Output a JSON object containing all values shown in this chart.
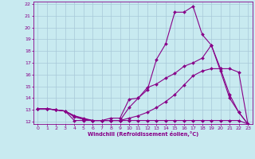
{
  "xlabel": "Windchill (Refroidissement éolien,°C)",
  "bg_color": "#c8eaf0",
  "grid_color": "#a8c8d8",
  "line_color": "#880088",
  "xlim": [
    -0.5,
    23.5
  ],
  "ylim": [
    11.8,
    22.2
  ],
  "xticks": [
    0,
    1,
    2,
    3,
    4,
    5,
    6,
    7,
    8,
    9,
    10,
    11,
    12,
    13,
    14,
    15,
    16,
    17,
    18,
    19,
    20,
    21,
    22,
    23
  ],
  "yticks": [
    12,
    13,
    14,
    15,
    16,
    17,
    18,
    19,
    20,
    21,
    22
  ],
  "lines": [
    {
      "x": [
        0,
        1,
        2,
        3,
        4,
        5,
        6,
        7,
        8,
        9,
        10,
        11,
        12,
        13,
        14,
        15,
        16,
        17,
        18,
        19,
        20,
        21,
        22,
        23
      ],
      "y": [
        13.1,
        13.1,
        13.0,
        12.9,
        12.1,
        12.1,
        12.1,
        12.1,
        12.3,
        12.3,
        13.9,
        14.0,
        14.7,
        17.3,
        18.6,
        21.3,
        21.3,
        21.8,
        19.4,
        18.5,
        16.3,
        14.0,
        12.8,
        11.8
      ]
    },
    {
      "x": [
        0,
        1,
        2,
        3,
        4,
        5,
        6,
        7,
        8,
        9,
        10,
        11,
        12,
        13,
        14,
        15,
        16,
        17,
        18,
        19,
        20,
        21,
        22,
        23
      ],
      "y": [
        13.1,
        13.1,
        13.0,
        12.9,
        12.4,
        12.2,
        12.1,
        12.1,
        12.1,
        12.1,
        13.2,
        14.0,
        14.9,
        15.2,
        15.7,
        16.1,
        16.7,
        17.0,
        17.4,
        18.5,
        16.5,
        14.3,
        12.8,
        11.8
      ]
    },
    {
      "x": [
        0,
        1,
        2,
        3,
        4,
        5,
        6,
        7,
        8,
        9,
        10,
        11,
        12,
        13,
        14,
        15,
        16,
        17,
        18,
        19,
        20,
        21,
        22,
        23
      ],
      "y": [
        13.1,
        13.1,
        13.0,
        12.9,
        12.5,
        12.3,
        12.1,
        12.1,
        12.1,
        12.1,
        12.3,
        12.5,
        12.8,
        13.2,
        13.7,
        14.3,
        15.1,
        15.9,
        16.3,
        16.5,
        16.5,
        16.5,
        16.2,
        11.8
      ]
    },
    {
      "x": [
        0,
        1,
        2,
        3,
        4,
        5,
        6,
        7,
        8,
        9,
        10,
        11,
        12,
        13,
        14,
        15,
        16,
        17,
        18,
        19,
        20,
        21,
        22,
        23
      ],
      "y": [
        13.1,
        13.1,
        13.0,
        12.9,
        12.5,
        12.2,
        12.1,
        12.1,
        12.1,
        12.1,
        12.1,
        12.1,
        12.1,
        12.1,
        12.1,
        12.1,
        12.1,
        12.1,
        12.1,
        12.1,
        12.1,
        12.1,
        12.1,
        11.8
      ]
    }
  ]
}
